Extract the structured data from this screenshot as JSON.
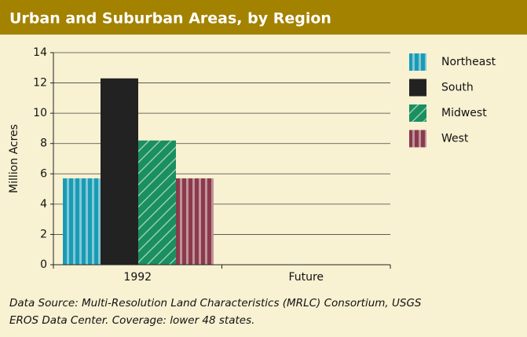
{
  "chart_data": {
    "type": "bar",
    "title": "Urban and Suburban Areas, by Region",
    "ylabel": "Million Acres",
    "categories": [
      "1992",
      "Future"
    ],
    "series": [
      {
        "name": "Northeast",
        "color": "#1a9bb5",
        "pattern": "stripes",
        "values": [
          5.7,
          null
        ]
      },
      {
        "name": "South",
        "color": "#222222",
        "pattern": "solid",
        "values": [
          12.3,
          null
        ]
      },
      {
        "name": "Midwest",
        "color": "#1a8f5f",
        "pattern": "hatch",
        "values": [
          8.2,
          null
        ]
      },
      {
        "name": "West",
        "color": "#8b3a4a",
        "pattern": "stripes",
        "values": [
          5.7,
          null
        ]
      }
    ],
    "ylim": [
      0,
      14
    ],
    "yticks": [
      0,
      2,
      4,
      6,
      8,
      10,
      12,
      14
    ],
    "grid": true,
    "legend": "right",
    "source": [
      "Data Source: Multi-Resolution Land Characteristics (MRLC) Consortium, USGS",
      "EROS Data Center. Coverage: lower 48 states."
    ]
  }
}
